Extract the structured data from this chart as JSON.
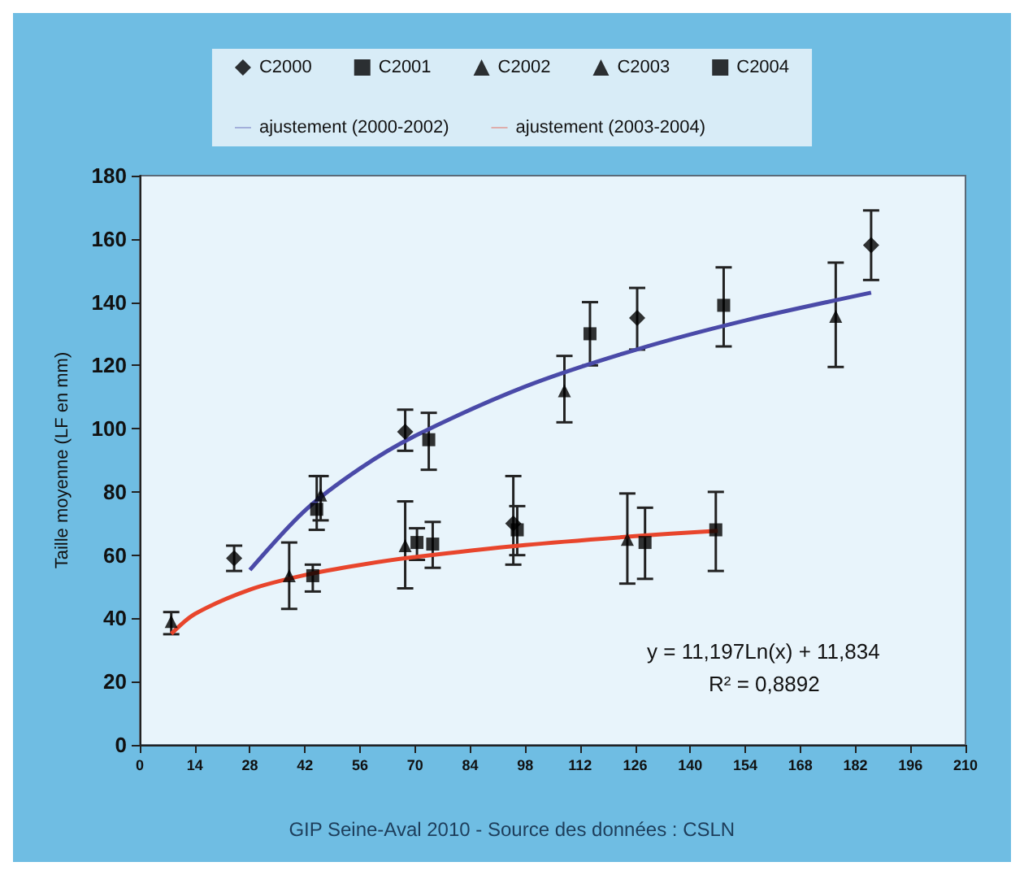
{
  "chart_data": {
    "type": "scatter",
    "ylabel": "Taille moyenne (LF en mm)",
    "xlim": [
      0,
      210
    ],
    "xticks": [
      0,
      14,
      28,
      42,
      56,
      70,
      84,
      98,
      112,
      126,
      140,
      154,
      168,
      182,
      196,
      210
    ],
    "ylim": [
      0,
      180
    ],
    "yticks": [
      0,
      20,
      40,
      60,
      80,
      100,
      120,
      140,
      160,
      180
    ],
    "grid": false,
    "legend": "top",
    "annotations": [
      "y = 11,197Ln(x) + 11,834",
      "R² = 0,8892",
      "GIP Seine-Aval 2010 - Source des données : CSLN"
    ],
    "series": [
      {
        "name": "C2000",
        "marker": "diamond",
        "color": "#000000",
        "x": [
          24,
          67.5,
          95,
          126.5,
          186
        ],
        "values": [
          59,
          99,
          70,
          135,
          158
        ],
        "errors": [
          [
            55,
            63
          ],
          [
            93,
            106
          ],
          [
            57,
            85
          ],
          [
            125,
            144.5
          ],
          [
            147,
            169
          ]
        ]
      },
      {
        "name": "C2001",
        "marker": "square",
        "color": "#000000",
        "x": [
          45,
          73.5,
          114.5,
          148.5
        ],
        "values": [
          74.5,
          96.5,
          130,
          139
        ],
        "errors": [
          [
            68,
            85
          ],
          [
            87,
            105
          ],
          [
            120,
            140
          ],
          [
            126,
            151
          ]
        ]
      },
      {
        "name": "C2002",
        "marker": "triangle",
        "color": "#000000",
        "x": [
          46,
          108,
          177
        ],
        "values": [
          79,
          112,
          135.5
        ],
        "errors": [
          [
            71,
            85
          ],
          [
            102,
            123
          ],
          [
            119.5,
            152.5
          ]
        ]
      },
      {
        "name": "C2003",
        "marker": "triangle",
        "color": "#000000",
        "x": [
          8,
          38,
          67.5,
          124
        ],
        "values": [
          39,
          53.5,
          63,
          65
        ],
        "errors": [
          [
            35,
            42
          ],
          [
            43,
            64
          ],
          [
            49.5,
            77
          ],
          [
            51,
            79.5
          ]
        ]
      },
      {
        "name": "C2004",
        "marker": "square",
        "color": "#000000",
        "x": [
          44,
          70.5,
          74.5,
          96,
          128.5,
          146.5
        ],
        "values": [
          53.5,
          64,
          63.5,
          68,
          64,
          68
        ],
        "errors": [
          [
            48.5,
            57
          ],
          [
            58.5,
            68.5
          ],
          [
            56,
            70.5
          ],
          [
            60,
            75.5
          ],
          [
            52.5,
            75
          ],
          [
            55,
            80
          ]
        ]
      },
      {
        "name": "ajustement (2000-2002)",
        "type": "line",
        "marker": "none",
        "color": "#4a4aa8",
        "x": [
          28,
          42,
          56,
          70,
          98,
          126,
          154,
          186
        ],
        "values": [
          55.3,
          74.1,
          87.4,
          97.7,
          113.3,
          124.9,
          134.2,
          143
        ]
      },
      {
        "name": "ajustement (2003-2004)",
        "type": "line",
        "marker": "none",
        "color": "#e8452c",
        "x": [
          8,
          14,
          28,
          42,
          56,
          70,
          98,
          126,
          147
        ],
        "values": [
          35.1,
          41.4,
          49.1,
          53.7,
          56.9,
          59.4,
          63.2,
          66,
          67.7
        ]
      }
    ]
  }
}
